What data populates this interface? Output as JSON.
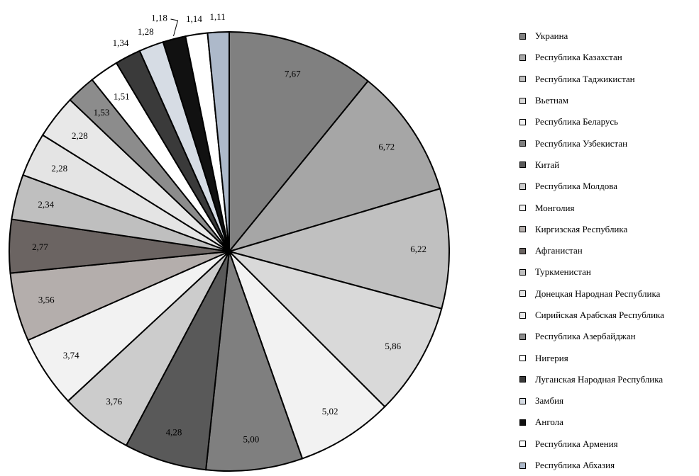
{
  "chart_data": {
    "type": "pie",
    "title": "",
    "legend_position": "right",
    "categories": [
      "Украина",
      "Республика Казахстан",
      "Республика Таджикистан",
      "Вьетнам",
      "Республика Беларусь",
      "Республика Узбекистан",
      "Китай",
      "Республика Молдова",
      "Монголия",
      "Киргизская Республика",
      "Афганистан",
      "Туркменистан",
      "Донецкая Народная Республика",
      "Сирийская Арабская Республика",
      "Республика Азербайджан",
      "Нигерия",
      "Луганская Народная Республика",
      "Замбия",
      "Ангола",
      "Республика Армения",
      "Республика Абхазия"
    ],
    "values": [
      7.67,
      6.72,
      6.22,
      5.86,
      5.02,
      5.0,
      4.28,
      3.76,
      3.74,
      3.56,
      2.77,
      2.34,
      2.28,
      2.28,
      1.53,
      1.51,
      1.34,
      1.28,
      1.18,
      1.14,
      1.11
    ],
    "value_labels": [
      "7,67",
      "6,72",
      "6,22",
      "5,86",
      "5,02",
      "5,00",
      "4,28",
      "3,76",
      "3,74",
      "3,56",
      "2,77",
      "2,34",
      "2,28",
      "2,28",
      "1,53",
      "1,51",
      "1,34",
      "1,28",
      "1,18",
      "1,14",
      "1,11"
    ],
    "colors": [
      "#808080",
      "#a6a6a6",
      "#c0c0c0",
      "#d9d9d9",
      "#f2f2f2",
      "#7f7f7f",
      "#595959",
      "#cccccc",
      "#f2f2f2",
      "#b4aeac",
      "#6b6462",
      "#bfbfbf",
      "#e4e4e4",
      "#e8e8e8",
      "#8c8c8c",
      "#ffffff",
      "#3a3a3a",
      "#d6dce4",
      "#111111",
      "#ffffff",
      "#adb9ca"
    ]
  }
}
